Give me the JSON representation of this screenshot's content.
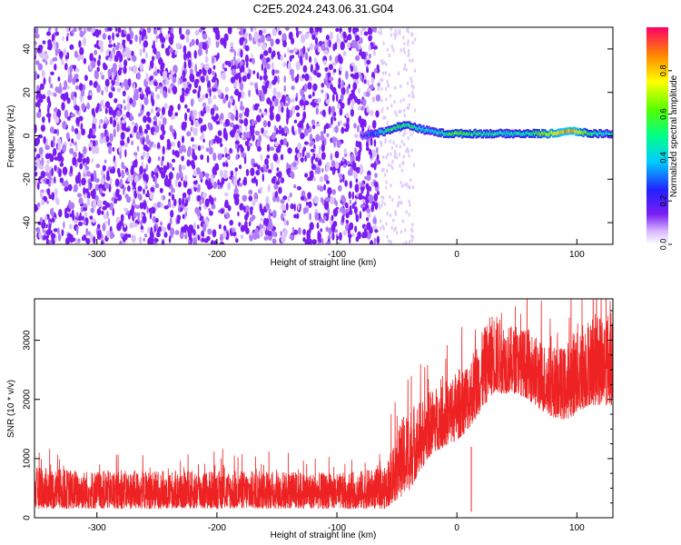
{
  "title": "C2E5.2024.243.06.31.G04",
  "colors": {
    "snr_line": "#ee2222",
    "signal_core": "#dd1144",
    "noise_dot": "#7a1cf2",
    "axis": "#000000"
  },
  "chart_data": [
    {
      "type": "heatmap",
      "xlabel": "Height of straight line (km)",
      "ylabel": "Frequency (Hz)",
      "xlim": [
        -352,
        130
      ],
      "ylim": [
        -50,
        50
      ],
      "xticks": [
        -300,
        -200,
        -100,
        0,
        100
      ],
      "yticks": [
        -40,
        -20,
        0,
        20,
        40
      ],
      "colorbar": {
        "label": "Normalized spectral amplitude",
        "range": [
          0,
          1
        ],
        "ticks": [
          "0.0",
          "0.2",
          "0.4",
          "0.6",
          "0.8"
        ],
        "tick_values": [
          0,
          0.2,
          0.4,
          0.6,
          0.8
        ]
      },
      "noise_region_x": [
        -352,
        -65
      ],
      "signal_track": {
        "x": [
          -80,
          -70,
          -60,
          -50,
          -40,
          -30,
          -20,
          -10,
          0,
          20,
          40,
          60,
          80,
          90,
          100,
          110,
          120,
          130
        ],
        "freq": [
          0,
          1,
          2,
          4,
          5,
          3,
          2,
          1,
          1,
          1,
          1,
          1,
          1,
          2,
          2,
          1,
          1,
          1
        ],
        "amplitude": [
          0.2,
          0.3,
          0.45,
          0.55,
          0.5,
          0.45,
          0.4,
          0.5,
          0.6,
          0.5,
          0.45,
          0.5,
          0.75,
          0.85,
          0.8,
          0.55,
          0.45,
          0.4
        ]
      }
    },
    {
      "type": "line",
      "xlabel": "Height of straight line (km)",
      "ylabel": "SNR (10 * v/v)",
      "xlim": [
        -352,
        130
      ],
      "ylim": [
        0,
        3700
      ],
      "xticks": [
        -300,
        -200,
        -100,
        0,
        100
      ],
      "yticks": [
        0,
        1000,
        2000,
        3000
      ],
      "envelope": {
        "x": [
          -350,
          -300,
          -250,
          -200,
          -150,
          -100,
          -60,
          -50,
          -40,
          -30,
          -20,
          -10,
          0,
          10,
          20,
          30,
          40,
          50,
          60,
          70,
          80,
          90,
          100,
          110,
          120,
          130
        ],
        "low": [
          150,
          150,
          150,
          150,
          150,
          150,
          150,
          300,
          450,
          800,
          1100,
          1200,
          1300,
          1500,
          1800,
          2100,
          2100,
          2100,
          2000,
          1800,
          1700,
          1650,
          1750,
          1900,
          1900,
          1900
        ],
        "high": [
          850,
          800,
          800,
          800,
          800,
          750,
          850,
          1500,
          1900,
          2000,
          2200,
          2300,
          2500,
          2700,
          3100,
          3500,
          3300,
          3200,
          3200,
          3000,
          2900,
          2900,
          3300,
          3400,
          3500,
          3500
        ]
      },
      "dip_points": [
        {
          "x": 12,
          "y": 100
        }
      ]
    }
  ]
}
